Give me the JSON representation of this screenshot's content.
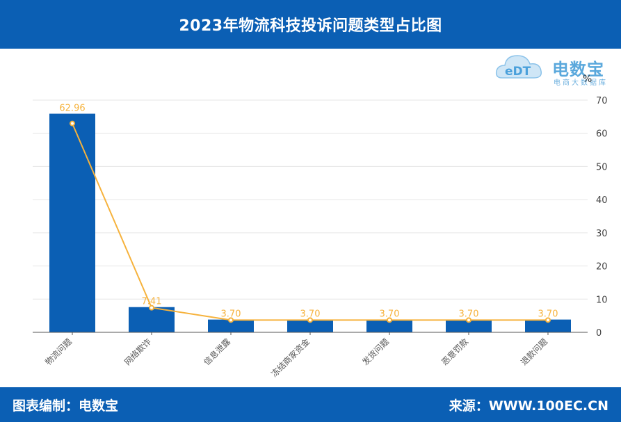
{
  "header": {
    "title": "2023年物流科技投诉问题类型占比图"
  },
  "footer": {
    "left": "图表编制：电数宝",
    "right": "来源：WWW.100EC.CN"
  },
  "logo": {
    "brand": "电数宝",
    "sub": "电商大数据库",
    "mark": "eDT"
  },
  "colors": {
    "header_bg": "#0b5fb4",
    "bar": "#0b5fb4",
    "line": "#f6b23c",
    "axis": "#555555",
    "grid": "#e6e6e6"
  },
  "chart_data": {
    "type": "bar",
    "categories": [
      "物流问题",
      "网络欺诈",
      "信息泄露",
      "冻结商家资金",
      "发货问题",
      "恶意罚款",
      "退款问题"
    ],
    "series": [
      {
        "type": "bar",
        "values": [
          65.9,
          7.6,
          3.85,
          3.85,
          3.85,
          3.85,
          3.85
        ]
      },
      {
        "type": "line",
        "values": [
          62.96,
          7.41,
          3.7,
          3.7,
          3.7,
          3.7,
          3.7
        ]
      }
    ],
    "data_labels": [
      "62.96",
      "7.41",
      "3.70",
      "3.70",
      "3.70",
      "3.70",
      "3.70"
    ],
    "y_axis": {
      "position": "right",
      "unit": "%",
      "ylim": [
        0,
        70
      ],
      "ticks": [
        0,
        10,
        20,
        30,
        40,
        50,
        60,
        70
      ]
    },
    "grid": true
  }
}
